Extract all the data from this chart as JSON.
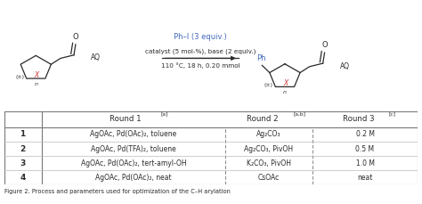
{
  "row_labels": [
    "1",
    "2",
    "3",
    "4"
  ],
  "col1": [
    "AgOAc, Pd(OAc)₂, toluene",
    "AgOAc, Pd(TFA)₂, toluene",
    "AgOAc, Pd(OAc)₂, tert-amyl-OH",
    "AgOAc, Pd(OAc)₂, neat"
  ],
  "col2": [
    "Ag₂CO₃",
    "Ag₂CO₃, PivOH",
    "K₂CO₃, PivOH",
    "CsOAc"
  ],
  "col3": [
    "0.2 M",
    "0.5 M",
    "1.0 M",
    "neat"
  ],
  "reaction_line1": "Ph–I (3 equiv.)",
  "reaction_line2": "catalyst (5 mol-%), base (2 equiv.)",
  "reaction_line3": "110 °C, 18 h, 0.20 mmol",
  "text_color": "#2a2a2a",
  "blue_color": "#4169bb",
  "red_color": "#cc3333",
  "header_sup1": "[a]",
  "header_sup2": "[a,b]",
  "header_sup3": "[c]",
  "header_base1": "Round 1",
  "header_base2": "Round 2",
  "header_base3": "Round 3"
}
